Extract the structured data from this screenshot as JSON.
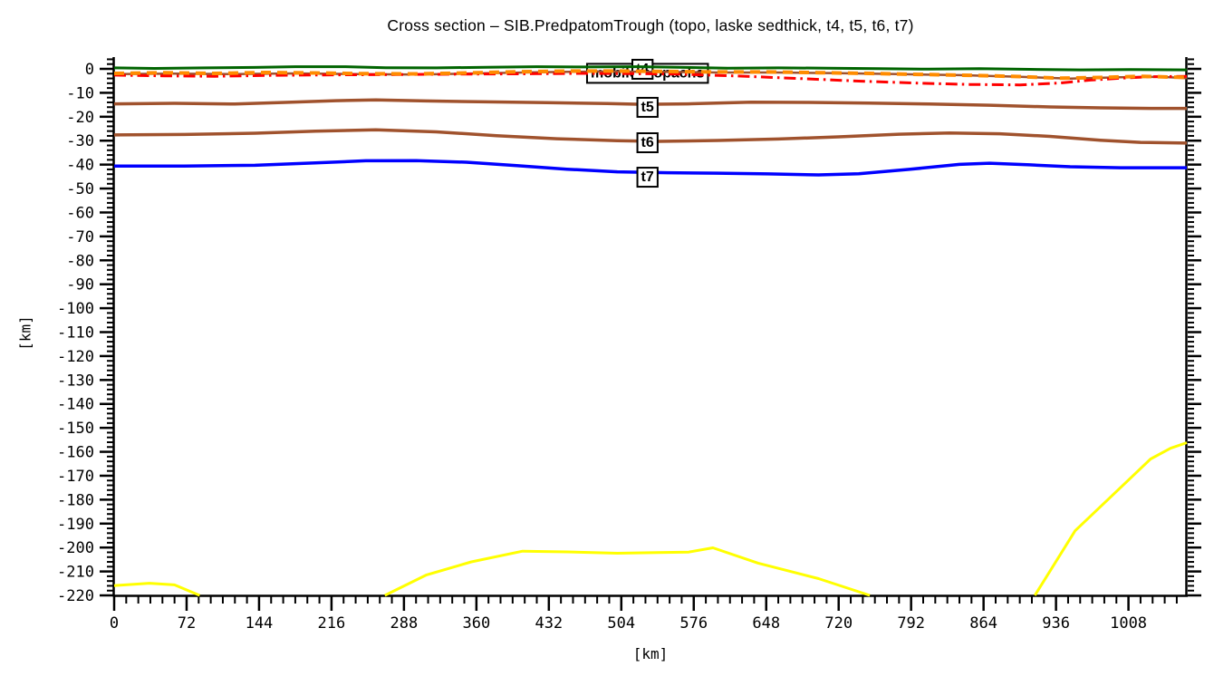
{
  "chart_data": {
    "type": "line",
    "title": "Cross section – SIB.PredpatomTrough (topo, laske sedthick, t4, t5, t6, t7)",
    "xlabel": "[km]",
    "ylabel": "[km]",
    "grid": false,
    "legend": "none (boxed in-plot labels instead)",
    "x_axis": {
      "min": 0,
      "max": 1066,
      "major_tick_step": 72,
      "minor_tick_step": 12,
      "tick_labels": [
        0,
        72,
        144,
        216,
        288,
        360,
        432,
        504,
        576,
        648,
        720,
        792,
        864,
        936,
        1008
      ]
    },
    "y_axis": {
      "min": -220,
      "max": 5,
      "major_tick_step": 10,
      "minor_tick_step": 2,
      "tick_labels": [
        0,
        -10,
        -20,
        -30,
        -40,
        -50,
        -60,
        -70,
        -80,
        -90,
        -100,
        -110,
        -120,
        -130,
        -140,
        -150,
        -160,
        -170,
        -180,
        -190,
        -200,
        -210,
        -220
      ]
    },
    "series": [
      {
        "name": "topo",
        "color": "#006400",
        "style": "solid",
        "width": 3,
        "points": [
          [
            0,
            0.4
          ],
          [
            40,
            0.2
          ],
          [
            90,
            0.4
          ],
          [
            140,
            0.6
          ],
          [
            180,
            0.9
          ],
          [
            230,
            0.9
          ],
          [
            270,
            0.5
          ],
          [
            320,
            0.4
          ],
          [
            370,
            0.7
          ],
          [
            420,
            0.9
          ],
          [
            470,
            0.8
          ],
          [
            520,
            0.9
          ],
          [
            560,
            0.7
          ],
          [
            610,
            0.3
          ],
          [
            660,
            0.4
          ],
          [
            710,
            0.3
          ],
          [
            760,
            0.1
          ],
          [
            810,
            -0.1
          ],
          [
            860,
            0.1
          ],
          [
            910,
            -0.2
          ],
          [
            960,
            -0.4
          ],
          [
            1010,
            -0.3
          ],
          [
            1066,
            -0.4
          ]
        ]
      },
      {
        "name": "t4",
        "color": "#A0522D",
        "style": "solid",
        "width": 2.5,
        "points": [
          [
            0,
            -2.2
          ],
          [
            60,
            -2.0
          ],
          [
            120,
            -2.2
          ],
          [
            180,
            -1.9
          ],
          [
            240,
            -2.2
          ],
          [
            300,
            -2.4
          ],
          [
            360,
            -1.9
          ],
          [
            420,
            -1.4
          ],
          [
            480,
            -1.1
          ],
          [
            540,
            -1.2
          ],
          [
            600,
            -1.5
          ],
          [
            660,
            -1.5
          ],
          [
            720,
            -1.8
          ],
          [
            780,
            -2.2
          ],
          [
            840,
            -2.6
          ],
          [
            900,
            -3.3
          ],
          [
            950,
            -4.1
          ],
          [
            1000,
            -3.5
          ],
          [
            1040,
            -3.3
          ],
          [
            1066,
            -3.9
          ]
        ]
      },
      {
        "name": "laske sedthick",
        "color": "#FF0000",
        "style": "dashdot",
        "width": 3,
        "points": [
          [
            0,
            -2.6
          ],
          [
            50,
            -2.9
          ],
          [
            100,
            -3.1
          ],
          [
            160,
            -2.7
          ],
          [
            220,
            -2.5
          ],
          [
            280,
            -2.4
          ],
          [
            340,
            -2.2
          ],
          [
            400,
            -2.1
          ],
          [
            460,
            -1.9
          ],
          [
            520,
            -2.0
          ],
          [
            560,
            -2.2
          ],
          [
            620,
            -3.0
          ],
          [
            680,
            -4.0
          ],
          [
            740,
            -5.1
          ],
          [
            800,
            -6.0
          ],
          [
            850,
            -6.5
          ],
          [
            900,
            -6.7
          ],
          [
            940,
            -5.9
          ],
          [
            970,
            -4.7
          ],
          [
            1000,
            -3.9
          ],
          [
            1030,
            -3.3
          ],
          [
            1066,
            -3.1
          ]
        ]
      },
      {
        "name": "mobile isopachs",
        "color": "#FF8C00",
        "style": "dashed",
        "width": 4,
        "points": [
          [
            0,
            -1.9
          ],
          [
            50,
            -1.6
          ],
          [
            100,
            -1.9
          ],
          [
            150,
            -1.5
          ],
          [
            200,
            -1.7
          ],
          [
            250,
            -2.0
          ],
          [
            300,
            -2.1
          ],
          [
            350,
            -1.7
          ],
          [
            400,
            -1.2
          ],
          [
            450,
            -0.9
          ],
          [
            500,
            -0.9
          ],
          [
            550,
            -1.1
          ],
          [
            600,
            -1.3
          ],
          [
            650,
            -1.3
          ],
          [
            700,
            -1.6
          ],
          [
            750,
            -1.9
          ],
          [
            800,
            -2.3
          ],
          [
            850,
            -2.7
          ],
          [
            900,
            -3.2
          ],
          [
            940,
            -3.9
          ],
          [
            980,
            -3.6
          ],
          [
            1020,
            -3.1
          ],
          [
            1066,
            -3.6
          ]
        ]
      },
      {
        "name": "t5",
        "color": "#A0522D",
        "style": "solid",
        "width": 3.5,
        "points": [
          [
            0,
            -14.6
          ],
          [
            60,
            -14.4
          ],
          [
            120,
            -14.7
          ],
          [
            170,
            -14.0
          ],
          [
            220,
            -13.3
          ],
          [
            260,
            -13.0
          ],
          [
            310,
            -13.4
          ],
          [
            370,
            -13.8
          ],
          [
            430,
            -14.1
          ],
          [
            490,
            -14.5
          ],
          [
            525,
            -14.8
          ],
          [
            570,
            -14.6
          ],
          [
            633,
            -13.9
          ],
          [
            690,
            -14.0
          ],
          [
            750,
            -14.3
          ],
          [
            810,
            -14.7
          ],
          [
            870,
            -15.2
          ],
          [
            930,
            -15.9
          ],
          [
            980,
            -16.3
          ],
          [
            1030,
            -16.5
          ],
          [
            1066,
            -16.5
          ]
        ]
      },
      {
        "name": "t6",
        "color": "#A0522D",
        "style": "solid",
        "width": 3.5,
        "points": [
          [
            0,
            -27.6
          ],
          [
            70,
            -27.4
          ],
          [
            140,
            -26.9
          ],
          [
            200,
            -26.0
          ],
          [
            260,
            -25.5
          ],
          [
            320,
            -26.3
          ],
          [
            380,
            -27.9
          ],
          [
            440,
            -29.2
          ],
          [
            500,
            -30.0
          ],
          [
            540,
            -30.3
          ],
          [
            600,
            -29.9
          ],
          [
            660,
            -29.3
          ],
          [
            720,
            -28.4
          ],
          [
            780,
            -27.3
          ],
          [
            830,
            -26.8
          ],
          [
            880,
            -27.1
          ],
          [
            930,
            -28.2
          ],
          [
            980,
            -29.8
          ],
          [
            1020,
            -30.7
          ],
          [
            1066,
            -31.0
          ]
        ]
      },
      {
        "name": "t7",
        "color": "#0000FF",
        "style": "solid",
        "width": 3.5,
        "points": [
          [
            0,
            -40.6
          ],
          [
            70,
            -40.6
          ],
          [
            140,
            -40.3
          ],
          [
            200,
            -39.3
          ],
          [
            250,
            -38.4
          ],
          [
            300,
            -38.3
          ],
          [
            350,
            -39.0
          ],
          [
            400,
            -40.4
          ],
          [
            450,
            -41.9
          ],
          [
            500,
            -43.0
          ],
          [
            550,
            -43.4
          ],
          [
            600,
            -43.6
          ],
          [
            650,
            -43.9
          ],
          [
            700,
            -44.3
          ],
          [
            740,
            -43.8
          ],
          [
            790,
            -42.0
          ],
          [
            840,
            -39.9
          ],
          [
            870,
            -39.4
          ],
          [
            910,
            -40.1
          ],
          [
            950,
            -40.9
          ],
          [
            1000,
            -41.3
          ],
          [
            1066,
            -41.3
          ]
        ]
      },
      {
        "name": "yellow curve",
        "color": "#FFFF00",
        "style": "solid",
        "width": 3,
        "points": [
          [
            0,
            -215.9
          ],
          [
            35,
            -214.9
          ],
          [
            60,
            -215.6
          ],
          [
            85,
            -220
          ],
          null,
          [
            269,
            -220
          ],
          [
            310,
            -211.5
          ],
          [
            355,
            -206.0
          ],
          [
            406,
            -201.5
          ],
          [
            450,
            -201.8
          ],
          [
            500,
            -202.4
          ],
          [
            540,
            -202.1
          ],
          [
            571,
            -201.9
          ],
          [
            595,
            -200.1
          ],
          [
            640,
            -206.5
          ],
          [
            700,
            -213.0
          ],
          [
            751,
            -220
          ],
          null,
          [
            915,
            -220
          ],
          [
            955,
            -193.0
          ],
          [
            1000,
            -175.0
          ],
          [
            1030,
            -163.0
          ],
          [
            1050,
            -158.5
          ],
          [
            1066,
            -156.2
          ]
        ]
      }
    ],
    "annotations": [
      {
        "text": "mobile isopachs",
        "x": 530,
        "y": -1.3,
        "layer": "below"
      },
      {
        "text": "t4",
        "x": 525,
        "y": 0.4,
        "layer": "below"
      },
      {
        "text": "t5",
        "x": 530,
        "y": -15.5,
        "layer": "above"
      },
      {
        "text": "t6",
        "x": 530,
        "y": -30.3,
        "layer": "above"
      },
      {
        "text": "t7",
        "x": 530,
        "y": -44.7,
        "layer": "above"
      }
    ]
  }
}
